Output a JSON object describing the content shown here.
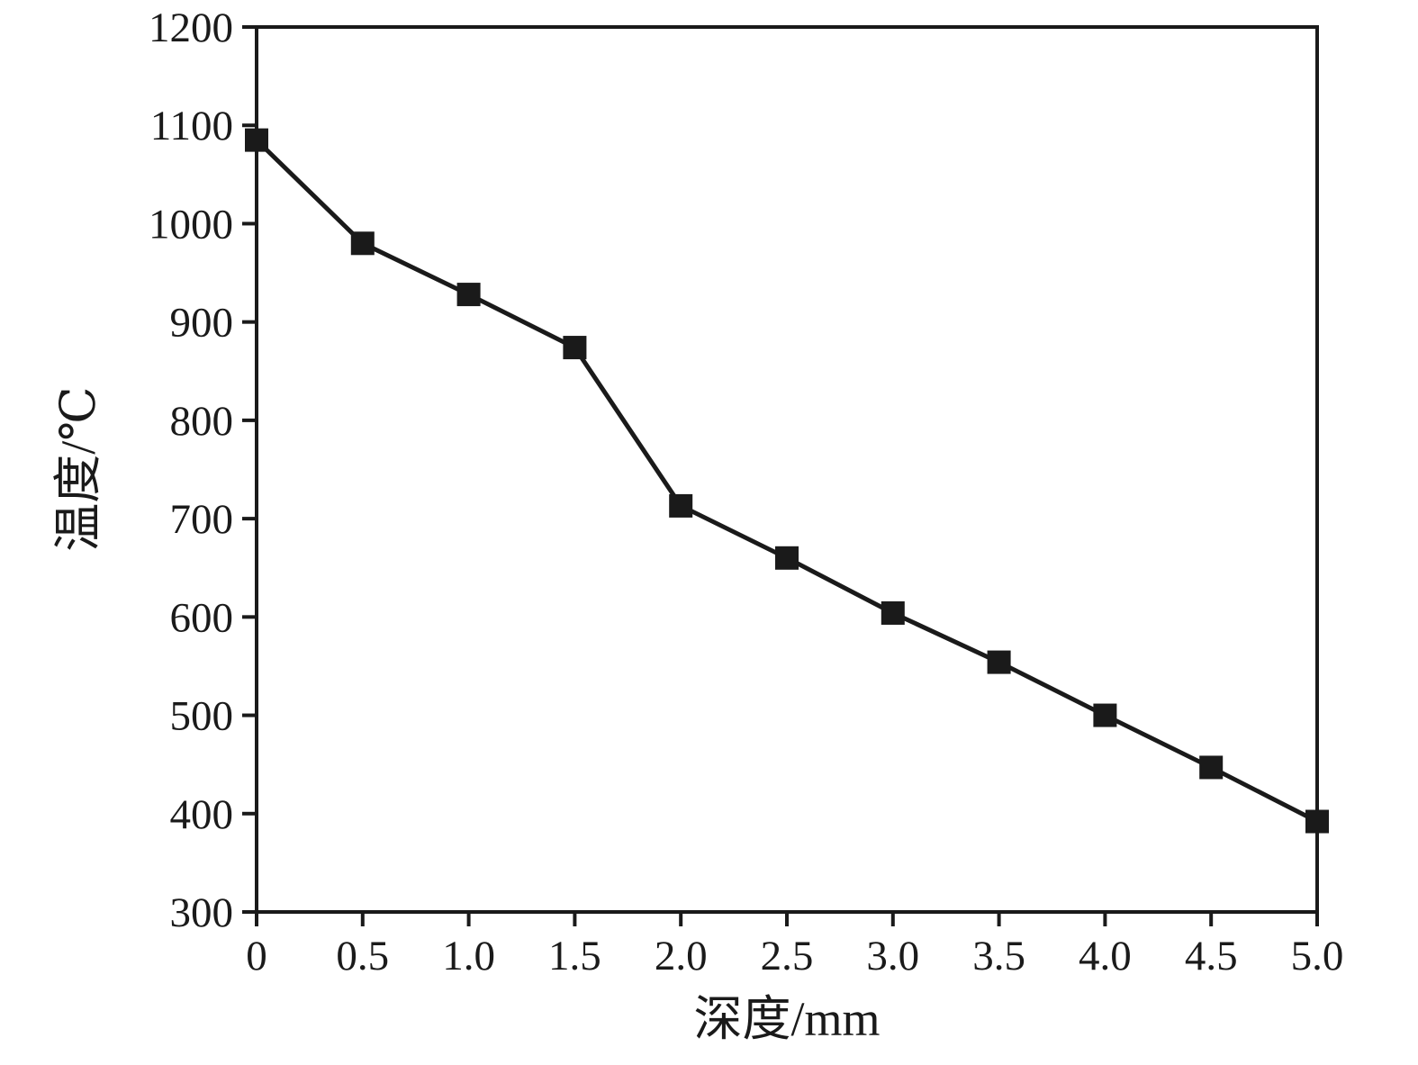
{
  "chart_data": {
    "type": "line",
    "title": "",
    "xlabel": "深度/mm",
    "ylabel": "温度/℃",
    "x": [
      0,
      0.5,
      1.0,
      1.5,
      2.0,
      2.5,
      3.0,
      3.5,
      4.0,
      4.5,
      5.0
    ],
    "y": [
      1085,
      980,
      928,
      874,
      713,
      660,
      604,
      554,
      500,
      447,
      392
    ],
    "xlim": [
      0,
      5
    ],
    "ylim": [
      300,
      1200
    ],
    "x_ticks": [
      0,
      0.5,
      1.0,
      1.5,
      2.0,
      2.5,
      3.0,
      3.5,
      4.0,
      4.5,
      5.0
    ],
    "x_tick_labels": [
      "0",
      "0.5",
      "1.0",
      "1.5",
      "2.0",
      "2.5",
      "3.0",
      "3.5",
      "4.0",
      "4.5",
      "5.0"
    ],
    "y_ticks": [
      300,
      400,
      500,
      600,
      700,
      800,
      900,
      1000,
      1100,
      1200
    ],
    "y_tick_labels": [
      "300",
      "400",
      "500",
      "600",
      "700",
      "800",
      "900",
      "1000",
      "1100",
      "1200"
    ],
    "grid": false,
    "legend": false,
    "marker": "square",
    "line_color": "#1a1a1a",
    "marker_color": "#1a1a1a",
    "axis_color": "#1a1a1a",
    "background": "#ffffff"
  }
}
